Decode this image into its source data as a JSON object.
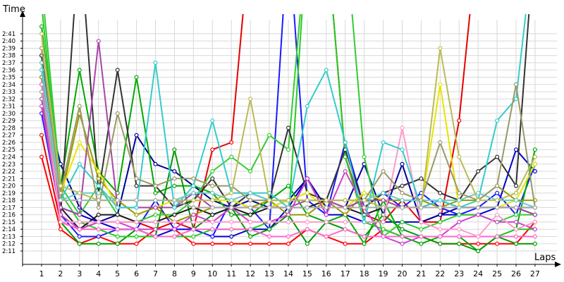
{
  "chart_data": {
    "type": "line",
    "title": "",
    "xlabel": "Laps",
    "ylabel": "Time",
    "xlim": [
      1,
      27
    ],
    "ylim": [
      "2:11",
      "2:41"
    ],
    "x": [
      1,
      2,
      3,
      4,
      5,
      6,
      7,
      8,
      9,
      10,
      11,
      12,
      13,
      14,
      15,
      16,
      17,
      18,
      19,
      20,
      21,
      22,
      23,
      24,
      25,
      26,
      27
    ],
    "x_tick_labels": [
      "1",
      "2",
      "3",
      "4",
      "5",
      "6",
      "7",
      "8",
      "9",
      "10",
      "11",
      "12",
      "13",
      "14",
      "15",
      "16",
      "17",
      "18",
      "19",
      "20",
      "21",
      "22",
      "23",
      "24",
      "25",
      "26",
      "27"
    ],
    "y_tick_labels": [
      "2:11",
      "2:12",
      "2:13",
      "2:14",
      "2:15",
      "2:16",
      "2:17",
      "2:18",
      "2:19",
      "2:20",
      "2:21",
      "2:22",
      "2:23",
      "2:24",
      "2:25",
      "2:26",
      "2:27",
      "2:28",
      "2:29",
      "2:30",
      "2:31",
      "2:32",
      "2:33",
      "2:34",
      "2:35",
      "2:36",
      "2:37",
      "2:38",
      "2:39",
      "2:40",
      "2:41"
    ],
    "grid": true,
    "legend": "none",
    "y_unit": "seconds above 2:00 (130 = 2:10)",
    "series": [
      {
        "color": "#ff0000",
        "values": [
          144,
          134,
          132,
          133,
          132,
          132,
          134,
          134,
          132,
          132,
          132,
          132,
          132,
          132,
          134,
          133,
          132,
          132,
          134,
          133,
          133,
          132,
          132,
          132,
          132,
          132,
          135
        ]
      },
      {
        "color": "#e60000",
        "values": [
          147,
          135,
          134,
          135,
          135,
          135,
          134,
          135,
          134,
          145,
          146,
          null,
          null,
          null,
          null,
          null,
          144,
          136,
          135,
          138,
          135,
          135,
          149,
          null,
          null,
          null,
          null
        ]
      },
      {
        "color": "#0000cc",
        "values": [
          155,
          137,
          136,
          135,
          134,
          134,
          133,
          134,
          134,
          133,
          133,
          134,
          134,
          137,
          141,
          136,
          136,
          135,
          135,
          135,
          135,
          136,
          136,
          136,
          137,
          145,
          142
        ]
      },
      {
        "color": "#000099",
        "values": [
          154,
          143,
          137,
          135,
          136,
          147,
          143,
          142,
          140,
          138,
          137,
          138,
          137,
          138,
          141,
          137,
          137,
          143,
          136,
          143,
          135,
          136,
          137,
          137,
          137,
          137,
          136
        ]
      },
      {
        "color": "#1a1aff",
        "values": [
          150,
          136,
          133,
          133,
          134,
          134,
          138,
          134,
          134,
          133,
          138,
          137,
          134,
          null,
          138,
          136,
          146,
          137,
          139,
          137,
          139,
          137,
          136,
          137,
          139,
          136,
          143
        ]
      },
      {
        "color": "#00aa00",
        "values": [
          162,
          140,
          156,
          142,
          139,
          155,
          139,
          140,
          140,
          139,
          136,
          136,
          138,
          140,
          136,
          135,
          136,
          132,
          138,
          133,
          132,
          133,
          133,
          131,
          133,
          134,
          145
        ]
      },
      {
        "color": "#009900",
        "values": [
          157,
          135,
          132,
          132,
          132,
          134,
          133,
          145,
          134,
          136,
          137,
          133,
          134,
          136,
          132,
          135,
          134,
          133,
          136,
          134,
          133,
          132,
          132,
          131,
          133,
          132,
          132
        ]
      },
      {
        "color": "#22cc22",
        "values": [
          165,
          139,
          135,
          134,
          133,
          133,
          133,
          133,
          133,
          134,
          134,
          134,
          135,
          135,
          null,
          null,
          144,
          135,
          134,
          133,
          133,
          133,
          133,
          133,
          133,
          134,
          134
        ]
      },
      {
        "color": "#33cc33",
        "values": [
          168,
          140,
          136,
          140,
          136,
          135,
          136,
          136,
          138,
          142,
          144,
          142,
          147,
          145,
          null,
          null,
          null,
          144,
          133,
          135,
          134,
          135,
          136,
          136,
          135,
          136,
          136
        ]
      },
      {
        "color": "#333333",
        "values": [
          153,
          136,
          null,
          139,
          156,
          140,
          140,
          137,
          138,
          141,
          137,
          139,
          138,
          148,
          139,
          138,
          145,
          137,
          139,
          140,
          141,
          139,
          138,
          142,
          144,
          140,
          null
        ]
      },
      {
        "color": "#1a1a1a",
        "values": [
          158,
          137,
          134,
          136,
          136,
          135,
          135,
          136,
          137,
          136,
          137,
          136,
          137,
          137,
          137,
          138,
          137,
          136,
          137,
          137,
          137,
          138,
          137,
          137,
          137,
          137,
          137
        ]
      },
      {
        "color": "#999900",
        "values": [
          155,
          138,
          150,
          141,
          138,
          136,
          137,
          135,
          136,
          137,
          137,
          137,
          138,
          136,
          136,
          138,
          136,
          139,
          138,
          138,
          138,
          137,
          138,
          138,
          140,
          138,
          138
        ]
      },
      {
        "color": "#e6e600",
        "values": [
          156,
          139,
          146,
          142,
          137,
          137,
          137,
          138,
          138,
          138,
          138,
          137,
          137,
          138,
          139,
          137,
          137,
          139,
          138,
          137,
          137,
          154,
          137,
          137,
          137,
          138,
          143
        ]
      },
      {
        "color": "#aa44aa",
        "values": [
          152,
          137,
          136,
          160,
          137,
          137,
          137,
          137,
          139,
          137,
          137,
          137,
          137,
          137,
          138,
          138,
          137,
          138,
          138,
          137,
          137,
          138,
          137,
          137,
          137,
          137,
          136
        ]
      },
      {
        "color": "#cc44cc",
        "values": [
          151,
          136,
          134,
          135,
          135,
          134,
          134,
          134,
          136,
          135,
          137,
          135,
          135,
          136,
          141,
          136,
          142,
          137,
          133,
          132,
          133,
          133,
          135,
          136,
          135,
          135,
          134
        ]
      },
      {
        "color": "#ff66cc",
        "values": [
          154,
          135,
          134,
          134,
          134,
          134,
          133,
          133,
          134,
          134,
          134,
          134,
          133,
          133,
          134,
          133,
          134,
          133,
          133,
          133,
          133,
          133,
          133,
          133,
          133,
          133,
          133
        ]
      },
      {
        "color": "#ff99cc",
        "values": [
          156,
          135,
          135,
          135,
          135,
          135,
          135,
          135,
          135,
          135,
          135,
          135,
          135,
          135,
          135,
          135,
          135,
          135,
          135,
          148,
          135,
          134,
          134,
          133,
          136,
          134,
          135
        ]
      },
      {
        "color": "#33cccc",
        "values": [
          156,
          138,
          143,
          140,
          137,
          137,
          157,
          137,
          140,
          149,
          139,
          139,
          139,
          137,
          151,
          156,
          146,
          135,
          146,
          145,
          137,
          138,
          137,
          138,
          149,
          152,
          null
        ]
      },
      {
        "color": "#66cccc",
        "values": [
          157,
          138,
          139,
          139,
          138,
          138,
          138,
          138,
          139,
          139,
          138,
          139,
          138,
          138,
          138,
          138,
          138,
          138,
          139,
          138,
          138,
          138,
          138,
          139,
          138,
          138,
          137
        ]
      },
      {
        "color": "#999966",
        "values": [
          159,
          139,
          151,
          137,
          150,
          141,
          140,
          141,
          141,
          140,
          140,
          138,
          138,
          138,
          138,
          138,
          138,
          138,
          142,
          139,
          138,
          146,
          139,
          138,
          140,
          154,
          137
        ]
      },
      {
        "color": "#bbbb55",
        "values": [
          161,
          140,
          139,
          138,
          138,
          138,
          138,
          138,
          138,
          138,
          139,
          152,
          138,
          138,
          138,
          138,
          138,
          138,
          137,
          137,
          137,
          159,
          144,
          138,
          138,
          139,
          144
        ]
      },
      {
        "color": "#aaaaaa",
        "values": [
          153,
          138,
          138,
          138,
          138,
          138,
          138,
          138,
          137,
          137,
          137,
          137,
          137,
          137,
          137,
          137,
          137,
          137,
          137,
          137,
          137,
          137,
          137,
          137,
          137,
          137,
          137
        ]
      }
    ]
  }
}
